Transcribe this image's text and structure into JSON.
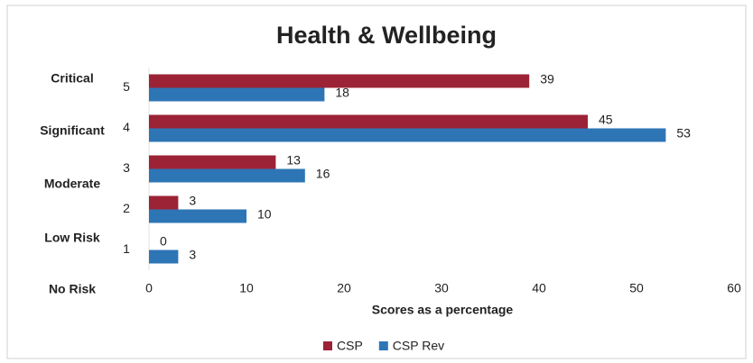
{
  "chart_data": {
    "type": "hbar",
    "title": "Health & Wellbeing",
    "categories": [
      "5",
      "4",
      "3",
      "2",
      "1"
    ],
    "risk_labels": [
      "Critical",
      "Significant",
      "Moderate",
      "Low Risk",
      "No Risk"
    ],
    "series": [
      {
        "name": "CSP",
        "color": "#9b2335",
        "values": [
          39,
          45,
          13,
          3,
          0
        ]
      },
      {
        "name": "CSP Rev",
        "color": "#2e75b6",
        "values": [
          18,
          53,
          16,
          10,
          3
        ]
      }
    ],
    "xlabel": "Scores as a percentage",
    "xlim": [
      0,
      60
    ],
    "xticks": [
      0,
      10,
      20,
      30,
      40,
      50,
      60
    ],
    "grid": false,
    "legend": "bottom"
  }
}
